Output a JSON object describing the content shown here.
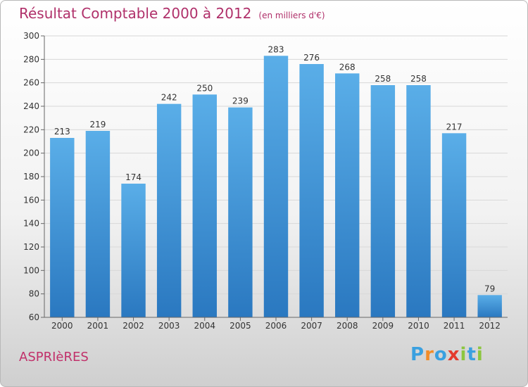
{
  "chart_data": {
    "type": "bar",
    "title": "Résultat Comptable 2000 à 2012",
    "subtitle": "(en milliers d'€)",
    "xlabel": "",
    "ylabel": "",
    "categories": [
      "2000",
      "2001",
      "2002",
      "2003",
      "2004",
      "2005",
      "2006",
      "2007",
      "2008",
      "2009",
      "2010",
      "2011",
      "2012"
    ],
    "values": [
      213,
      219,
      174,
      242,
      250,
      239,
      283,
      276,
      268,
      258,
      258,
      217,
      79
    ],
    "ylim": [
      60,
      300
    ],
    "yticks": [
      60,
      80,
      100,
      120,
      140,
      160,
      180,
      200,
      220,
      240,
      260,
      280,
      300
    ],
    "grid": true,
    "bar_color": "#3a8fd6",
    "bar_color_light": "#5aaee8",
    "bar_color_dark": "#2a78c0"
  },
  "footer": {
    "commune": "ASPRIèRES",
    "brand_letters": [
      {
        "char": "P",
        "color": "#3aa0e0"
      },
      {
        "char": "r",
        "color": "#f28c28"
      },
      {
        "char": "o",
        "color": "#3aa0e0"
      },
      {
        "char": "x",
        "color": "#e43b2e"
      },
      {
        "char": "i",
        "color": "#8cc63f"
      },
      {
        "char": "t",
        "color": "#3aa0e0"
      },
      {
        "char": "i",
        "color": "#8cc63f"
      }
    ]
  }
}
